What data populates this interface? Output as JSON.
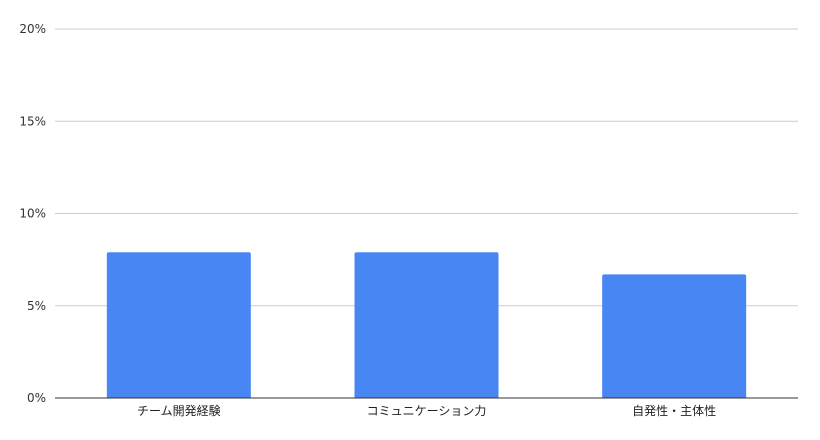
{
  "chart_data": {
    "type": "bar",
    "categories": [
      "チーム開発経験",
      "コミュニケーション力",
      "自発性・主体性"
    ],
    "values": [
      7.9,
      7.9,
      6.7
    ],
    "y_ticks": [
      "0%",
      "5%",
      "10%",
      "15%",
      "20%"
    ],
    "ylim": [
      0,
      20
    ],
    "y_unit": "%",
    "grid": true,
    "legend": "none",
    "title": "",
    "xlabel": "",
    "ylabel": "",
    "colors": {
      "bar": "#4886f4",
      "grid": "#cccccc",
      "axis": "#333333"
    }
  }
}
